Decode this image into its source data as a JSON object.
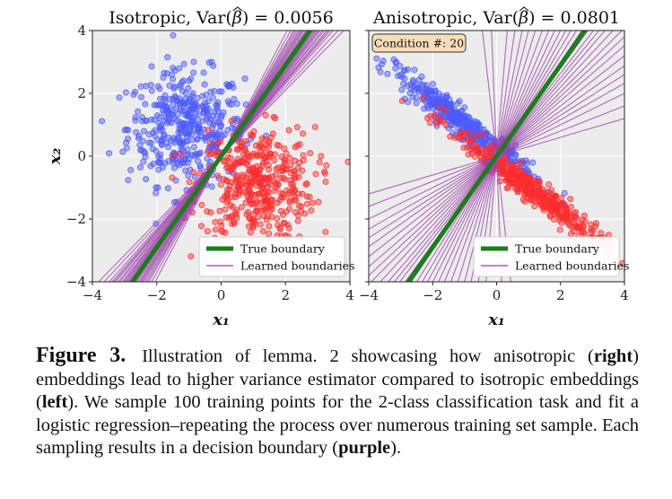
{
  "chart_data": [
    {
      "type": "scatter",
      "title": "Isotropic, Var(β̂) = 0.0056",
      "title_prefix": "Isotropic, Var(",
      "title_beta": "β",
      "title_suffix": ") = 0.0056",
      "xlabel": "x₁",
      "ylabel": "x₂",
      "xlim": [
        -4,
        4
      ],
      "ylim": [
        -4,
        4
      ],
      "xticks": [
        -4,
        -2,
        0,
        2,
        4
      ],
      "yticks": [
        -4,
        -2,
        0,
        2,
        4
      ],
      "grid": true,
      "legend_position": "bottom-right",
      "series": [
        {
          "name": "",
          "kind": "points",
          "color": "#4d5cff",
          "center": [
            -1.1,
            0.9
          ],
          "spread": [
            0.9,
            0.9
          ],
          "count": 420
        },
        {
          "name": "",
          "kind": "points",
          "color": "#ff2d2d",
          "center": [
            1.1,
            -0.9
          ],
          "spread": [
            0.9,
            0.9
          ],
          "count": 420
        },
        {
          "name": "True boundary",
          "kind": "line",
          "color": "#1a7f1a",
          "slope": 1.45
        },
        {
          "name": "Learned boundaries",
          "kind": "lines",
          "color": "#9b3fa8",
          "slopes": [
            1.05,
            1.1,
            1.15,
            1.18,
            1.2,
            1.22,
            1.25,
            1.27,
            1.3,
            1.32,
            1.34,
            1.36,
            1.38,
            1.4,
            1.42,
            1.44,
            1.46,
            1.48,
            1.5,
            1.52,
            1.55,
            1.58,
            1.6,
            1.63,
            1.66,
            1.7,
            1.74,
            1.78,
            1.85,
            1.95
          ]
        }
      ],
      "legend": [
        {
          "label": "True boundary",
          "color": "#1a7f1a",
          "style": "thick"
        },
        {
          "label": "Learned boundaries",
          "color": "#9b3fa8",
          "style": "thin"
        }
      ]
    },
    {
      "type": "scatter",
      "title": "Anisotropic, Var(β̂) = 0.0801",
      "title_prefix": "Anisotropic, Var(",
      "title_beta": "β",
      "title_suffix": ") = 0.0801",
      "xlabel": "x₁",
      "ylabel": "",
      "xlim": [
        -4,
        4
      ],
      "ylim": [
        -4,
        4
      ],
      "xticks": [
        -4,
        -2,
        0,
        2,
        4
      ],
      "yticks": [
        -4,
        -2,
        0,
        2,
        4
      ],
      "grid": true,
      "legend_position": "bottom-right",
      "annotation": "Condition #: 20",
      "series": [
        {
          "name": "",
          "kind": "points",
          "color": "#4d5cff",
          "center": [
            -1.0,
            1.0
          ],
          "axis": [
            0.7,
            -0.55
          ],
          "spread": [
            1.45,
            0.18
          ],
          "count": 420
        },
        {
          "name": "",
          "kind": "points",
          "color": "#ff2d2d",
          "center": [
            1.0,
            -1.0
          ],
          "axis": [
            0.7,
            -0.55
          ],
          "spread": [
            1.45,
            0.18
          ],
          "count": 420
        },
        {
          "name": "True boundary",
          "kind": "line",
          "color": "#1a7f1a",
          "slope": 1.45
        },
        {
          "name": "Learned boundaries",
          "kind": "lines",
          "color": "#9b3fa8",
          "slopes": [
            0.4,
            0.5,
            0.58,
            0.65,
            0.72,
            0.8,
            0.88,
            0.95,
            1.02,
            1.1,
            1.18,
            1.25,
            1.32,
            1.4,
            1.5,
            1.6,
            1.72,
            1.85,
            2.0,
            2.2,
            2.45,
            2.8,
            3.3,
            4.0,
            5.0,
            7.0,
            12.0,
            -25.0,
            -9.0,
            0.3
          ]
        }
      ],
      "legend": [
        {
          "label": "True boundary",
          "color": "#1a7f1a",
          "style": "thick"
        },
        {
          "label": "Learned boundaries",
          "color": "#9b3fa8",
          "style": "thin"
        }
      ]
    }
  ],
  "caption": {
    "label": "Figure 3.",
    "p1": " Illustration of lemma. 2 showcasing how anisotropic (",
    "b1": "right",
    "p2": ") embeddings lead to higher variance estimator compared to isotropic embeddings (",
    "b2": "left",
    "p3": "). We sample 100 training points for the 2-class classification task and fit a logistic regression–repeating the process over numerous training set sample. Each sampling results in a decision boundary (",
    "b3": "purple",
    "p4": ")."
  }
}
